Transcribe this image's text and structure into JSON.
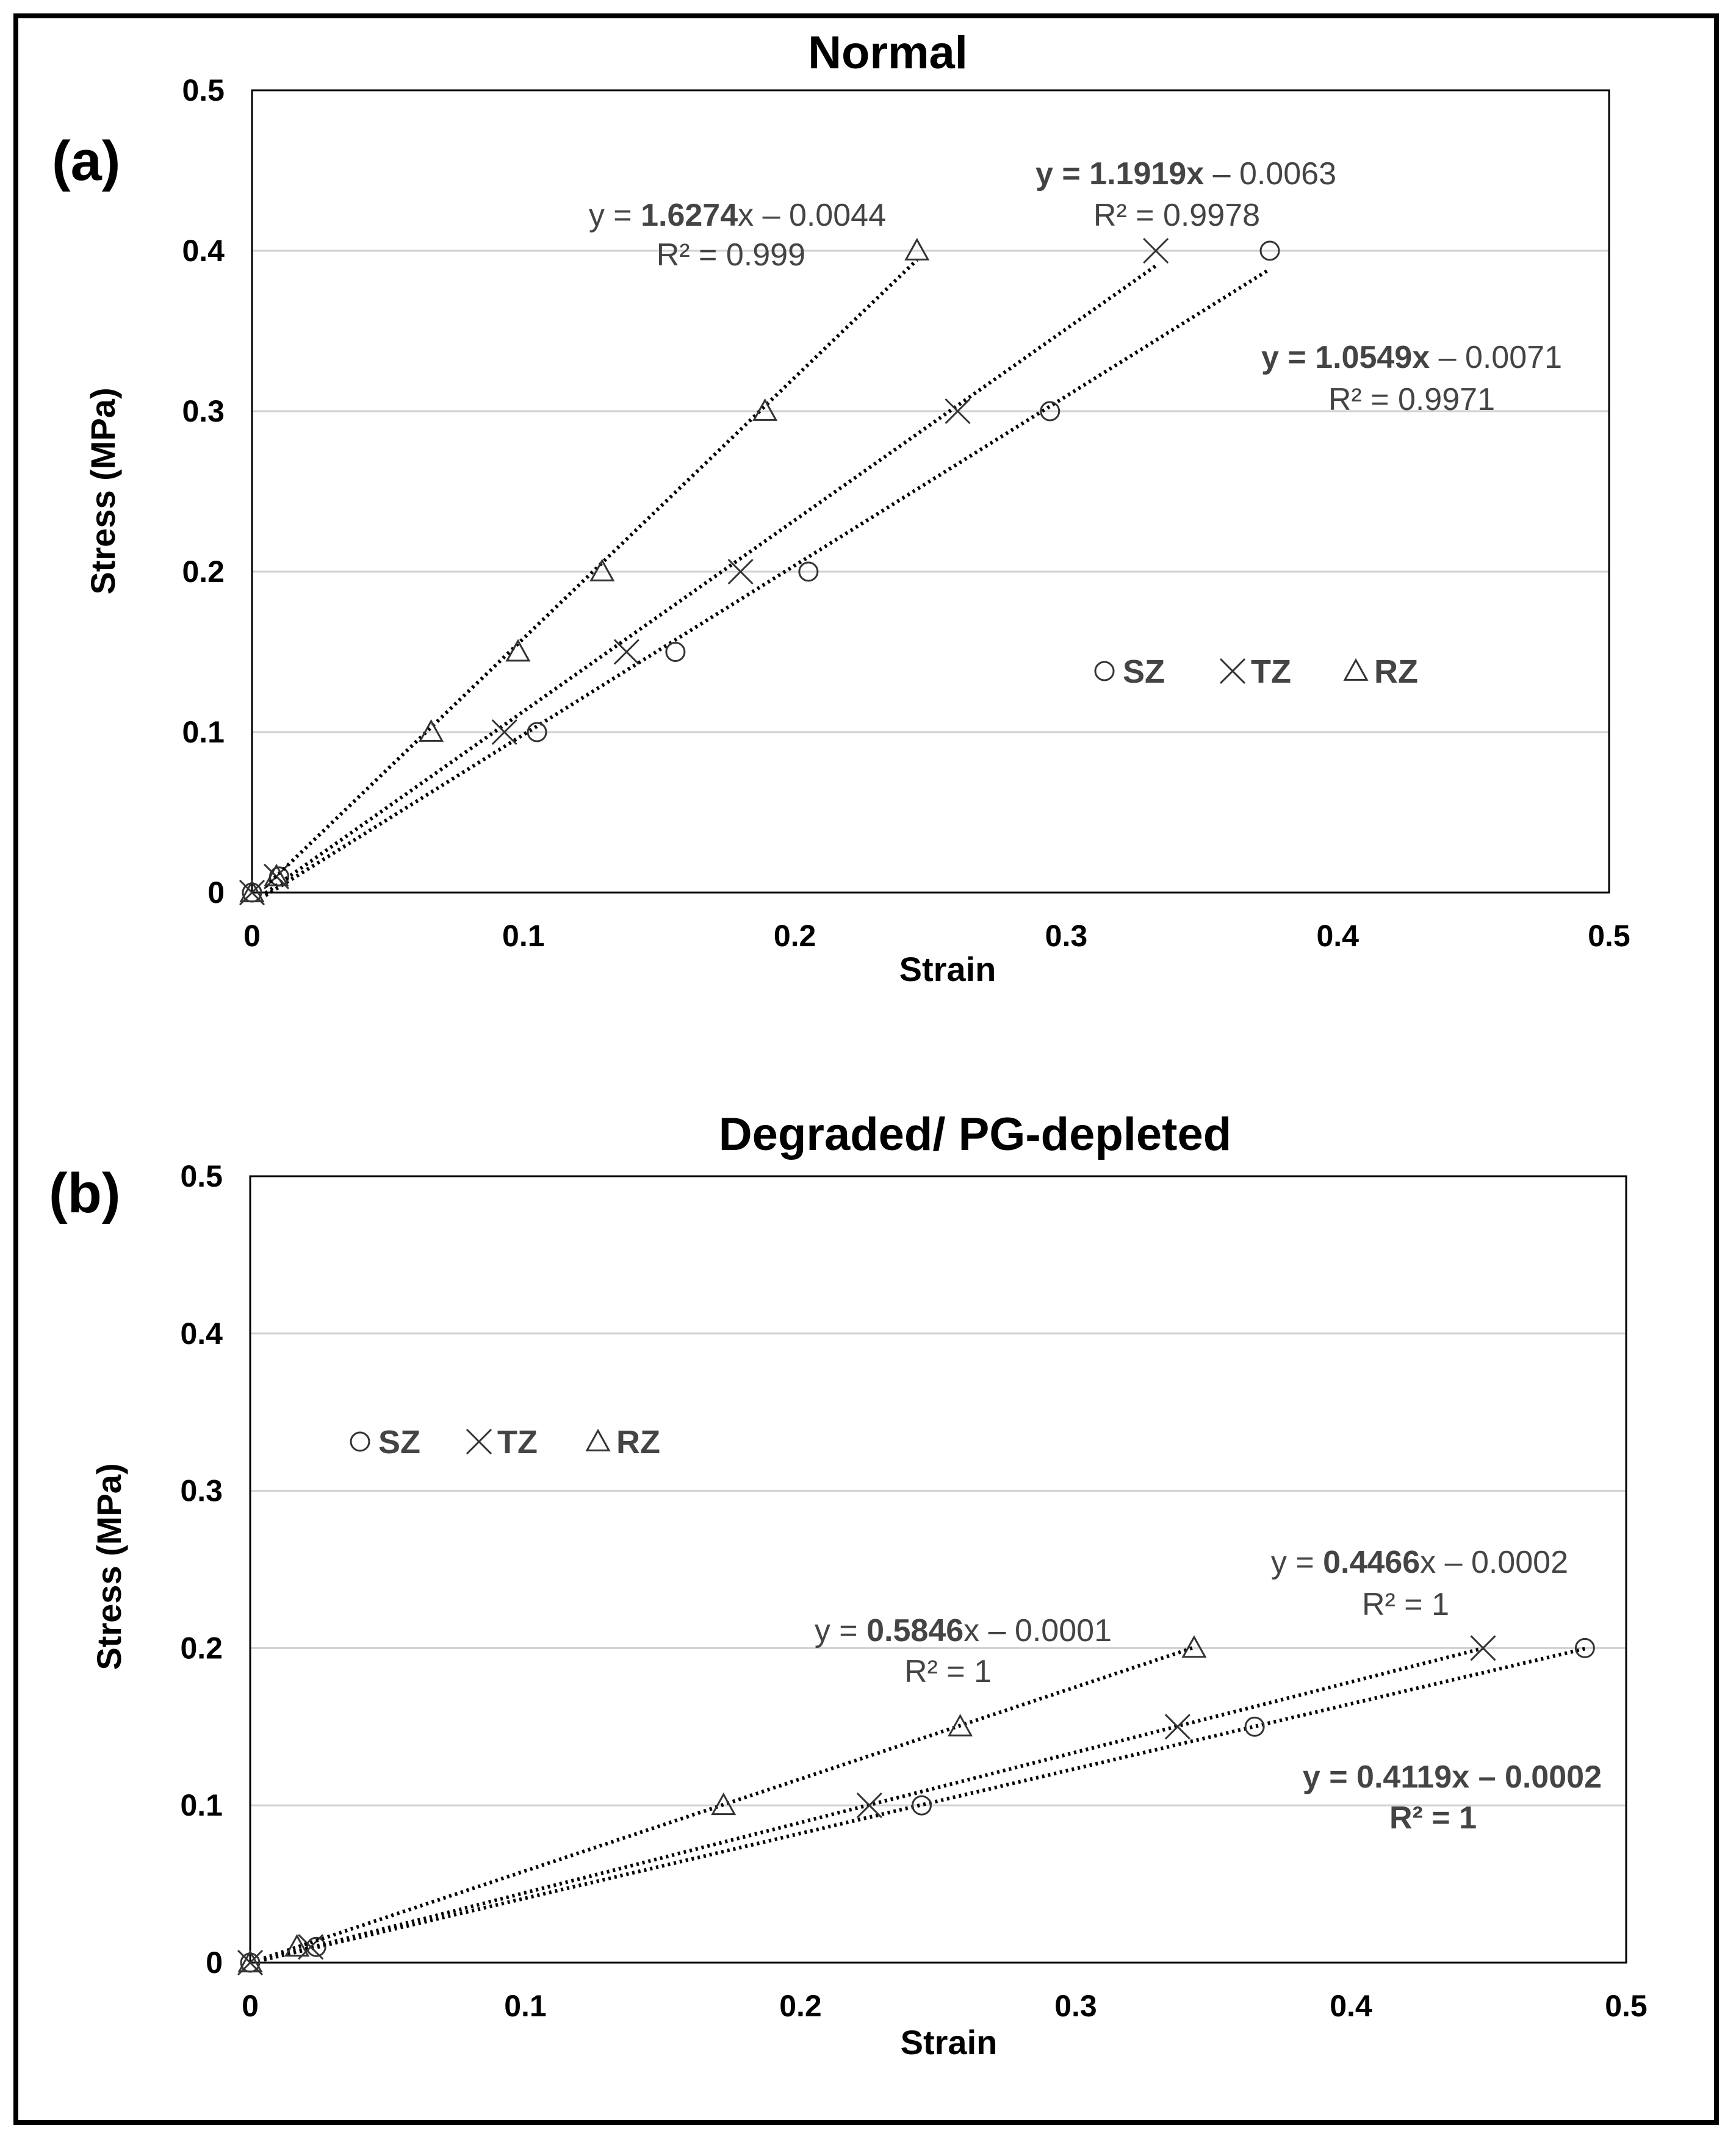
{
  "figure": {
    "frame_color": "#000000"
  },
  "chart_data": [
    {
      "panel_label": "(a)",
      "type": "scatter",
      "title": "Normal",
      "xlabel": "Strain",
      "ylabel": "Stress (MPa)",
      "xlim": [
        0,
        0.5
      ],
      "ylim": [
        0,
        0.5
      ],
      "x_ticks": [
        "0",
        "0.1",
        "0.2",
        "0.3",
        "0.4",
        "0.5"
      ],
      "y_ticks": [
        "0",
        "0.1",
        "0.2",
        "0.3",
        "0.4",
        "0.5"
      ],
      "grid": "horizontal",
      "legend_position": "middle-right",
      "series": [
        {
          "name": "SZ",
          "marker": "circle",
          "x": [
            0,
            0.01,
            0.105,
            0.156,
            0.205,
            0.294,
            0.375
          ],
          "y": [
            0,
            0.01,
            0.1,
            0.15,
            0.2,
            0.3,
            0.4
          ],
          "trend": {
            "slope": 1.0549,
            "intercept": -0.0071,
            "x_end": 0.375,
            "eq_pre": "y = ",
            "eq_coef": "1.0549x",
            "eq_post": " – 0.0071",
            "coef_bold": true,
            "y_bold": true,
            "r2": "R² = 0.9971"
          }
        },
        {
          "name": "TZ",
          "marker": "x",
          "x": [
            0,
            0.009,
            0.093,
            0.138,
            0.18,
            0.26,
            0.333
          ],
          "y": [
            0,
            0.01,
            0.1,
            0.15,
            0.2,
            0.3,
            0.4
          ],
          "trend": {
            "slope": 1.1919,
            "intercept": -0.0063,
            "x_end": 0.333,
            "eq_pre": "y = ",
            "eq_coef": "1.1919x",
            "eq_post": " – 0.0063",
            "coef_bold": true,
            "y_bold": true,
            "r2": "R² = 0.9978"
          }
        },
        {
          "name": "RZ",
          "marker": "triangle",
          "x": [
            0,
            0.009,
            0.066,
            0.098,
            0.129,
            0.189,
            0.245
          ],
          "y": [
            0,
            0.01,
            0.1,
            0.15,
            0.2,
            0.3,
            0.4
          ],
          "trend": {
            "slope": 1.6274,
            "intercept": -0.0044,
            "x_end": 0.245,
            "eq_pre": "y = ",
            "eq_coef": "1.6274",
            "eq_post": "x – 0.0044",
            "coef_bold": true,
            "y_bold": false,
            "r2": "R² = 0.999"
          }
        }
      ]
    },
    {
      "panel_label": "(b)",
      "type": "scatter",
      "title": "Degraded/ PG-depleted",
      "xlabel": "Strain",
      "ylabel": "Stress (MPa)",
      "xlim": [
        0,
        0.5
      ],
      "ylim": [
        0,
        0.5
      ],
      "x_ticks": [
        "0",
        "0.1",
        "0.2",
        "0.3",
        "0.4",
        "0.5"
      ],
      "y_ticks": [
        "0",
        "0.1",
        "0.2",
        "0.3",
        "0.4",
        "0.5"
      ],
      "grid": "horizontal",
      "legend_position": "upper-left",
      "series": [
        {
          "name": "SZ",
          "marker": "circle",
          "x": [
            0,
            0.024,
            0.244,
            0.365,
            0.485
          ],
          "y": [
            0,
            0.01,
            0.1,
            0.15,
            0.2
          ],
          "trend": {
            "slope": 0.4119,
            "intercept": -0.0002,
            "x_end": 0.485,
            "eq_pre": "y = ",
            "eq_coef": "0.4119x – 0.0002",
            "eq_post": "",
            "coef_bold": true,
            "y_bold": true,
            "r2": "R² = 1",
            "r2_bold": true
          }
        },
        {
          "name": "TZ",
          "marker": "x",
          "x": [
            0,
            0.022,
            0.225,
            0.337,
            0.448
          ],
          "y": [
            0,
            0.01,
            0.1,
            0.15,
            0.2
          ],
          "trend": {
            "slope": 0.4466,
            "intercept": -0.0002,
            "x_end": 0.448,
            "eq_pre": "y = ",
            "eq_coef": "0.4466",
            "eq_post": "x – 0.0002",
            "coef_bold": true,
            "y_bold": false,
            "r2": "R² = 1"
          }
        },
        {
          "name": "RZ",
          "marker": "triangle",
          "x": [
            0,
            0.017,
            0.172,
            0.258,
            0.343
          ],
          "y": [
            0,
            0.01,
            0.1,
            0.15,
            0.2
          ],
          "trend": {
            "slope": 0.5846,
            "intercept": -0.0001,
            "x_end": 0.343,
            "eq_pre": "y = ",
            "eq_coef": "0.5846",
            "eq_post": "x – 0.0001",
            "coef_bold": true,
            "y_bold": false,
            "r2": "R² = 1"
          }
        }
      ]
    }
  ]
}
